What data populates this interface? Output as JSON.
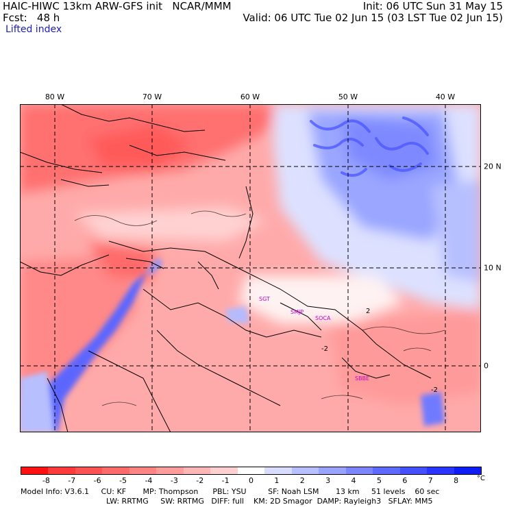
{
  "header": {
    "title_left": "HAIC-HIWC 13km ARW-GFS init   NCAR/MMM",
    "forecast_label": "Fcst:   48 h",
    "field_name": "Lifted index",
    "init_text": "Init: 06 UTC Sun 31 May 15",
    "valid_text": "Valid: 06 UTC Tue 02 Jun 15 (03 LST Tue 02 Jun 15)"
  },
  "map": {
    "lon_labels": [
      "80 W",
      "70 W",
      "60 W",
      "50 W",
      "40 W"
    ],
    "lat_labels": [
      "20 N",
      "10 N",
      "0"
    ],
    "station_labels": [
      "SGT",
      "SMJP",
      "SOCA",
      "SBBE"
    ],
    "contour_labels": [
      "-2",
      "-2",
      "2"
    ]
  },
  "colorbar": {
    "ticks": [
      "-8",
      "-7",
      "-6",
      "-5",
      "-4",
      "-3",
      "-2",
      "-1",
      "0",
      "1",
      "2",
      "3",
      "4",
      "5",
      "6",
      "7",
      "8"
    ],
    "unit": "°C",
    "colors": [
      "#ff1111",
      "#ff3a3a",
      "#ff5252",
      "#ff6b6b",
      "#ff8585",
      "#ff9d9d",
      "#ffb6b6",
      "#ffd0d0",
      "#ffffff",
      "#d8dcff",
      "#b8c0ff",
      "#9aa4ff",
      "#7c87ff",
      "#5f6bff",
      "#4450ff",
      "#2a36ff",
      "#0e1cf5"
    ]
  },
  "footer": {
    "line1": "Model Info: V3.6.1     CU: KF       MP: Thompson      PBL: YSU         SF: Noah LSM       13 km     51 levels    60 sec",
    "line2": "LW: RRTMG     SW: RRTMG   DIFF: full    KM: 2D Smagor  DAMP: Rayleigh3   SFLAY: MM5"
  }
}
